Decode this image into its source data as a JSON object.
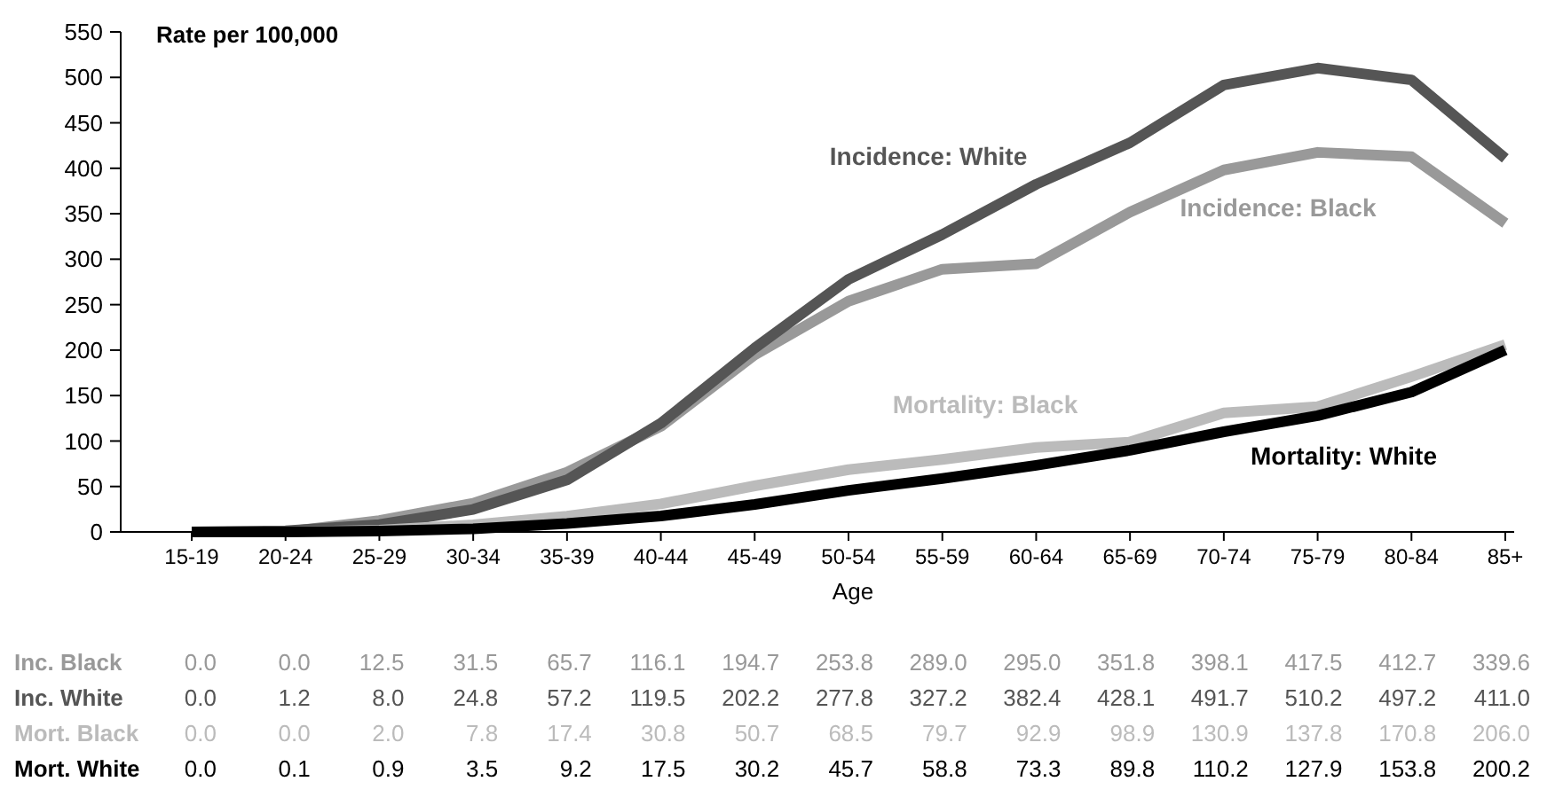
{
  "chart_data": {
    "type": "line",
    "ylabel": "Rate per 100,000",
    "xlabel": "Age",
    "categories": [
      "15-19",
      "20-24",
      "25-29",
      "30-34",
      "35-39",
      "40-44",
      "45-49",
      "50-54",
      "55-59",
      "60-64",
      "65-69",
      "70-74",
      "75-79",
      "80-84",
      "85+"
    ],
    "series": [
      {
        "name": "Inc. Black",
        "color": "#999999",
        "values": [
          0.0,
          0.0,
          12.5,
          31.5,
          65.7,
          116.1,
          194.7,
          253.8,
          289.0,
          295.0,
          351.8,
          398.1,
          417.5,
          412.7,
          339.6
        ],
        "value_labels": [
          "0.0",
          "0.0",
          "12.5",
          "31.5",
          "65.7",
          "116.1",
          "194.7",
          "253.8",
          "289.0",
          "295.0",
          "351.8",
          "398.1",
          "417.5",
          "412.7",
          "339.6"
        ]
      },
      {
        "name": "Inc. White",
        "color": "#555555",
        "values": [
          0.0,
          1.2,
          8.0,
          24.8,
          57.2,
          119.5,
          202.2,
          277.8,
          327.2,
          382.4,
          428.1,
          491.7,
          510.2,
          497.2,
          411.0
        ],
        "value_labels": [
          "0.0",
          "1.2",
          "8.0",
          "24.8",
          "57.2",
          "119.5",
          "202.2",
          "277.8",
          "327.2",
          "382.4",
          "428.1",
          "491.7",
          "510.2",
          "497.2",
          "411.0"
        ]
      },
      {
        "name": "Mort. Black",
        "color": "#bbbbbb",
        "values": [
          0.0,
          0.0,
          2.0,
          7.8,
          17.4,
          30.8,
          50.7,
          68.5,
          79.7,
          92.9,
          98.9,
          130.9,
          137.8,
          170.8,
          206.0
        ],
        "value_labels": [
          "0.0",
          "0.0",
          "2.0",
          "7.8",
          "17.4",
          "30.8",
          "50.7",
          "68.5",
          "79.7",
          "92.9",
          "98.9",
          "130.9",
          "137.8",
          "170.8",
          "206.0"
        ]
      },
      {
        "name": "Mort. White",
        "color": "#000000",
        "values": [
          0.0,
          0.1,
          0.9,
          3.5,
          9.2,
          17.5,
          30.2,
          45.7,
          58.8,
          73.3,
          89.8,
          110.2,
          127.9,
          153.8,
          200.2
        ],
        "value_labels": [
          "0.0",
          "0.1",
          "0.9",
          "3.5",
          "9.2",
          "17.5",
          "30.2",
          "45.7",
          "58.8",
          "73.3",
          "89.8",
          "110.2",
          "127.9",
          "153.8",
          "200.2"
        ]
      }
    ],
    "annotations": [
      "Incidence: White",
      "Incidence: Black",
      "Mortality: Black",
      "Mortality: White"
    ],
    "ylim": [
      0,
      550
    ],
    "yticks": [
      0,
      50,
      100,
      150,
      200,
      250,
      300,
      350,
      400,
      450,
      500,
      550
    ],
    "grid": false,
    "legend": false,
    "marker": "none",
    "line_style": "solid"
  }
}
